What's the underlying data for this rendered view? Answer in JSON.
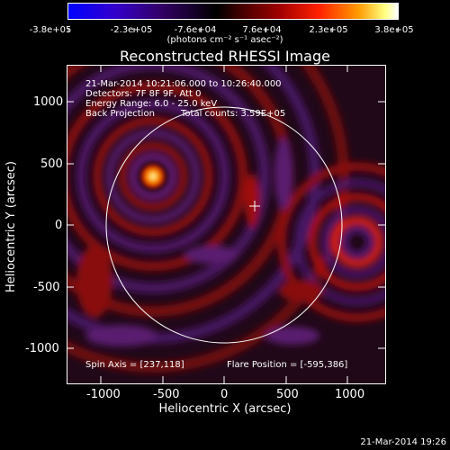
{
  "colorbar": {
    "ticks": [
      "-3.8e+05",
      "-2.3e+05",
      "-7.6e+04",
      "7.6e+04",
      "2.3e+05",
      "3.8e+05"
    ],
    "units": "(photons cm⁻² s⁻¹ asec⁻²)"
  },
  "title": "Reconstructed RHESSI Image",
  "info": {
    "line1": "21-Mar-2014 10:21:06.000 to 10:26:40.000",
    "line2": "Detectors: 7F 8F 9F, Att 0",
    "line3": "Energy Range: 6.0 - 25.0 keV",
    "line4a": "Back Projection",
    "line4b": "Total counts: 3.59E+05",
    "spin_axis": "Spin Axis = [237,118]",
    "flare_position": "Flare Position = [-595,386]"
  },
  "axes": {
    "xlabel": "Heliocentric X (arcsec)",
    "ylabel": "Heliocentric Y (arcsec)",
    "xticks": [
      "-1000",
      "-500",
      "0",
      "500",
      "1000"
    ],
    "yticks": [
      "1000",
      "500",
      "0",
      "-500",
      "-1000"
    ]
  },
  "footer": "21-Mar-2014 19:26",
  "colors": {
    "limb": "#ffffff",
    "background": "#000000"
  }
}
